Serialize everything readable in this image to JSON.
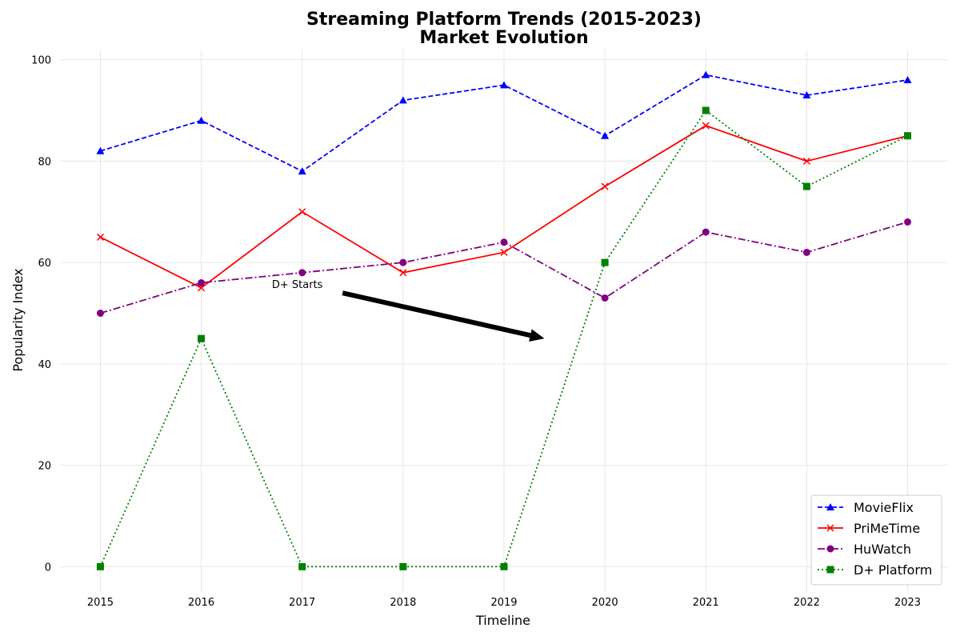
{
  "chart_data": {
    "type": "line",
    "title_line1": "Streaming Platform Trends (2015-2023)",
    "title_line2": "Market Evolution",
    "xlabel": "Timeline",
    "ylabel": "Popularity Index",
    "x": [
      2015,
      2016,
      2017,
      2018,
      2019,
      2020,
      2021,
      2022,
      2023
    ],
    "x_tick_labels": [
      "2015",
      "2016",
      "2017",
      "2018",
      "2019",
      "2020",
      "2021",
      "2022",
      "2023"
    ],
    "y_ticks": [
      0,
      20,
      40,
      60,
      80,
      100
    ],
    "y_tick_labels": [
      "0",
      "20",
      "40",
      "60",
      "80",
      "100"
    ],
    "xlim": [
      2014.6,
      2023.4
    ],
    "ylim": [
      -5,
      102
    ],
    "grid": true,
    "legend_position": "lower-right",
    "series": [
      {
        "name": "MovieFlix",
        "color": "#0000ff",
        "dash": "dashed",
        "marker": "triangle",
        "values": [
          82,
          88,
          78,
          92,
          95,
          85,
          97,
          93,
          96
        ]
      },
      {
        "name": "PriMeTime",
        "color": "#ff0000",
        "dash": "solid",
        "marker": "x",
        "values": [
          65,
          55,
          70,
          58,
          62,
          75,
          87,
          80,
          85
        ]
      },
      {
        "name": "HuWatch",
        "color": "#800080",
        "dash": "dashdot",
        "marker": "circle",
        "values": [
          50,
          56,
          58,
          60,
          64,
          53,
          66,
          62,
          68
        ]
      },
      {
        "name": "D+ Platform",
        "color": "#008000",
        "dash": "dotted",
        "marker": "square",
        "values": [
          0,
          45,
          0,
          0,
          0,
          60,
          90,
          75,
          85
        ]
      }
    ],
    "annotation": {
      "text": "D+ Starts",
      "text_at": [
        2016.7,
        55
      ],
      "arrow_from": [
        2017.4,
        54
      ],
      "arrow_to": [
        2019.4,
        45
      ]
    }
  }
}
